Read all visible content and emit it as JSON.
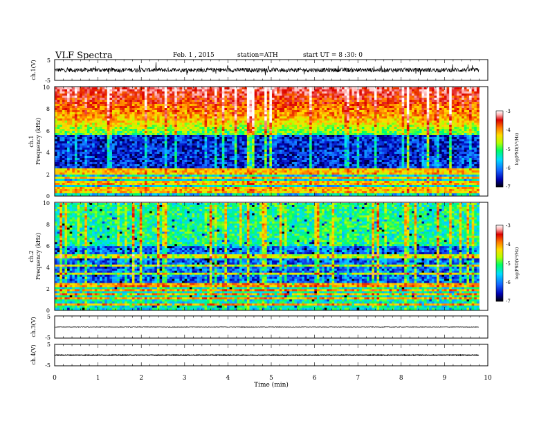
{
  "header": {
    "title": "VLF Spectra",
    "date": "Feb. 1 , 2015",
    "station": "station=ATH",
    "start_ut": "start UT = 8 :30: 0"
  },
  "colors": {
    "colormap": [
      "#000000",
      "#0000b4",
      "#1464ff",
      "#00dcff",
      "#00ff64",
      "#b4ff00",
      "#ffdc00",
      "#ff7800",
      "#dc0000",
      "#ffb4b4",
      "#ffffff"
    ],
    "trace": "#000000",
    "frame": "#000000"
  },
  "chart_data": [
    {
      "type": "line",
      "panel": "ch1",
      "ylabel": "ch.1(V)",
      "ylim": [
        -5,
        5
      ],
      "yticks": [
        "5",
        "-5"
      ],
      "x_end_min": 9.8,
      "noise_amplitude": 1.3,
      "mean": 0.0
    },
    {
      "type": "heatmap",
      "panel": "ch1-spectrogram",
      "ylabel_channel": "ch.1",
      "ylabel": "Frequency (kHz)",
      "ylim": [
        0,
        10
      ],
      "yticks": [
        "0",
        "2",
        "4",
        "6",
        "8",
        "10"
      ],
      "colorbar": {
        "label": "log(PSD(V²/Hz)",
        "range": [
          -7,
          -3
        ],
        "ticks": [
          "-3",
          "-4",
          "-5",
          "-6",
          "-7"
        ]
      },
      "bands_khz": [
        0.3,
        0.5,
        0.7,
        1.0,
        1.3,
        1.6,
        2.0,
        2.3
      ],
      "x_end_min": 9.8
    },
    {
      "type": "heatmap",
      "panel": "ch2-spectrogram",
      "ylabel_channel": "ch.2",
      "ylabel": "Frequency (kHz)",
      "ylim": [
        0,
        10
      ],
      "yticks": [
        "0",
        "2",
        "4",
        "6",
        "8",
        "10"
      ],
      "colorbar": {
        "label": "log(PSD(V²/Hz)",
        "range": [
          -7,
          -3
        ],
        "ticks": [
          "-3",
          "-4",
          "-5",
          "-6",
          "-7"
        ]
      },
      "bands_khz": [
        0.5,
        1.0,
        1.4,
        1.8,
        2.3,
        3.4,
        4.2,
        5.0
      ],
      "x_end_min": 9.8
    },
    {
      "type": "line",
      "panel": "ch3",
      "ylabel": "ch.3(V)",
      "ylim": [
        -5,
        5
      ],
      "yticks": [
        "5",
        "-5"
      ],
      "x_end_min": 9.8,
      "noise_amplitude": 0.15,
      "mean": 0.0
    },
    {
      "type": "line",
      "panel": "ch4",
      "ylabel": "ch.4(V)",
      "ylim": [
        -5,
        5
      ],
      "yticks": [
        "5",
        "-5"
      ],
      "x_end_min": 9.8,
      "noise_amplitude": 0.2,
      "mean": 0.0
    }
  ],
  "xaxis": {
    "label": "Time (min)",
    "range": [
      0,
      10
    ],
    "ticks": [
      "0",
      "1",
      "2",
      "3",
      "4",
      "5",
      "6",
      "7",
      "8",
      "9",
      "10"
    ]
  }
}
